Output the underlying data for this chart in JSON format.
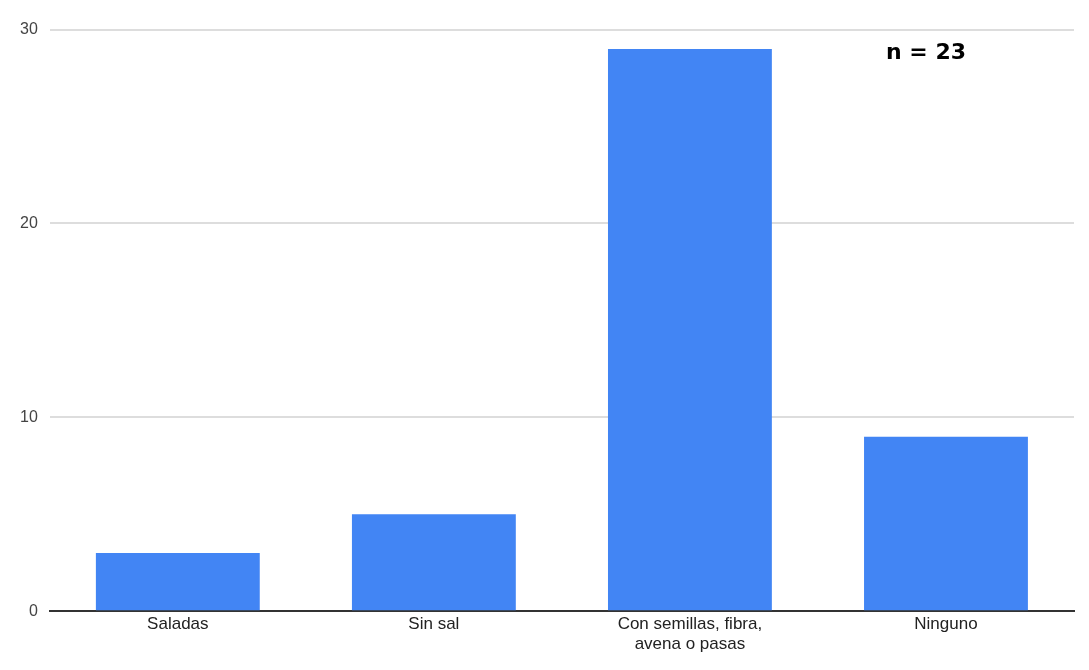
{
  "chart_data": {
    "type": "bar",
    "categories": [
      "Saladas",
      "Sin sal",
      "Con semillas, fibra, avena o pasas",
      "Ninguno"
    ],
    "values": [
      3,
      5,
      29,
      9
    ],
    "color": "#4285f4",
    "ylim": [
      0,
      30
    ],
    "yticks": [
      0,
      10,
      20,
      30
    ],
    "grid": "y",
    "legend": false,
    "annotations": [
      "n = 23"
    ]
  }
}
